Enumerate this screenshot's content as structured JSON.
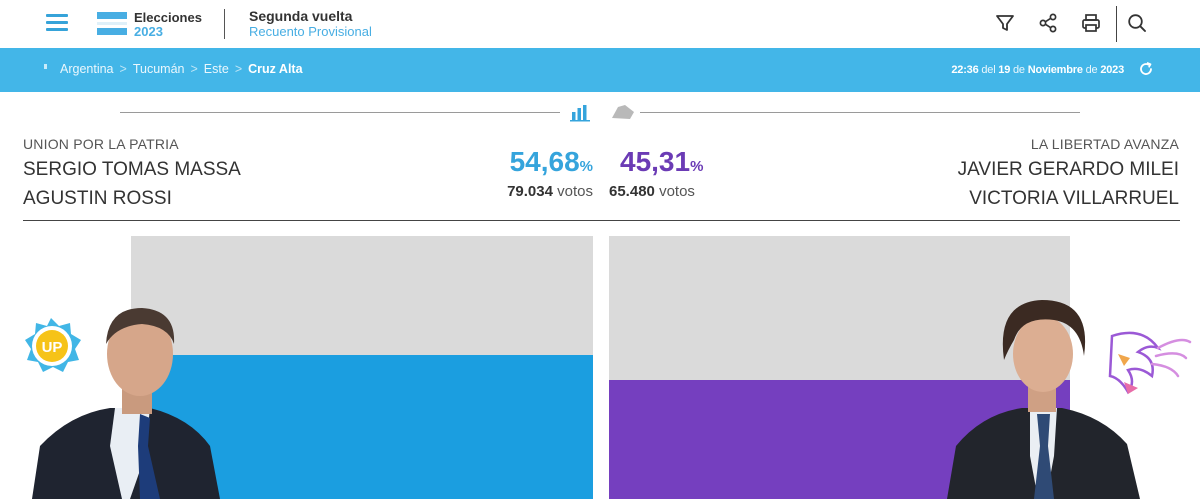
{
  "header": {
    "brand_title": "Elecciones",
    "brand_year": "2023",
    "round_title": "Segunda vuelta",
    "round_sub": "Recuento Provisional"
  },
  "breadcrumb": {
    "items": [
      "Argentina",
      "Tucumán",
      "Este"
    ],
    "current": "Cruz Alta",
    "separator": ">"
  },
  "updated": {
    "time": "22:36",
    "del": " del ",
    "day": "19",
    "de1": " de ",
    "month": "Noviembre",
    "de2": " de ",
    "year": "2023"
  },
  "candidates": {
    "left": {
      "party": "UNION POR LA PATRIA",
      "name1": "SERGIO TOMAS MASSA",
      "name2": "AGUSTIN ROSSI",
      "pct": "54,68",
      "pct_sign": "%",
      "votes": "79.034",
      "votes_label": "votos",
      "share": 0.5468,
      "color": "#1b9ee0",
      "badge": "UP"
    },
    "right": {
      "party": "LA LIBERTAD AVANZA",
      "name1": "JAVIER GERARDO MILEI",
      "name2": "VICTORIA VILLARRUEL",
      "pct": "45,31",
      "pct_sign": "%",
      "votes": "65.480",
      "votes_label": "votos",
      "share": 0.4531,
      "color": "#753fbf"
    }
  },
  "colors": {
    "accent": "#43b6e8",
    "bar_bg": "#dadada"
  }
}
